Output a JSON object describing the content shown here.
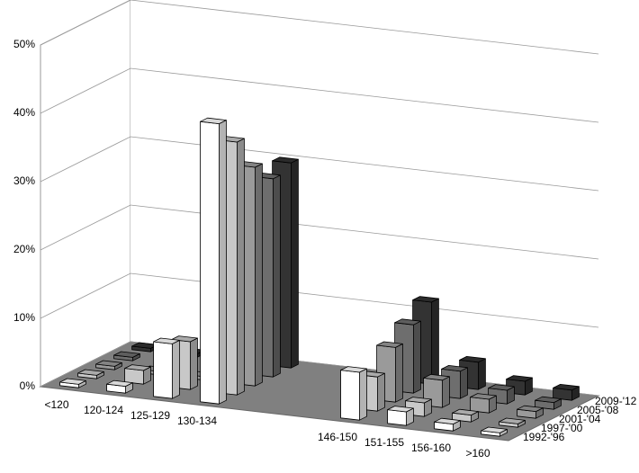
{
  "chart_data": {
    "type": "bar3d",
    "categories": [
      "<120",
      "120-124",
      "125-129",
      "130-134",
      null,
      null,
      "146-150",
      "151-155",
      "156-160",
      ">160"
    ],
    "series": [
      {
        "name": "1992-'96",
        "color": "#ffffff",
        "values": [
          0.5,
          1,
          8,
          41,
          null,
          null,
          7,
          2,
          1,
          0.5
        ]
      },
      {
        "name": "1997-'00",
        "color": "#c8c8c8",
        "values": [
          0.5,
          2,
          7,
          37,
          null,
          null,
          5,
          2,
          1,
          0.5
        ]
      },
      {
        "name": "2001-'04",
        "color": "#9a9a9a",
        "values": [
          0.5,
          0.5,
          0.5,
          32,
          null,
          null,
          8,
          4,
          2,
          1
        ]
      },
      {
        "name": "2005-'08",
        "color": "#6e6e6e",
        "values": [
          0.5,
          0.5,
          0.5,
          29,
          null,
          null,
          10,
          4,
          2,
          1
        ]
      },
      {
        "name": "2009-'12",
        "color": "#333333",
        "values": [
          0.5,
          0.5,
          0.5,
          30,
          null,
          null,
          12,
          4,
          2,
          1.5
        ]
      }
    ],
    "ylim": [
      0,
      50
    ],
    "yticks": [
      {
        "value": 0,
        "label": "0%"
      },
      {
        "value": 10,
        "label": "10%"
      },
      {
        "value": 20,
        "label": "20%"
      },
      {
        "value": 30,
        "label": "30%"
      },
      {
        "value": 40,
        "label": "40%"
      },
      {
        "value": 50,
        "label": "50%"
      }
    ],
    "grid": true,
    "floor_color": "#808080"
  }
}
